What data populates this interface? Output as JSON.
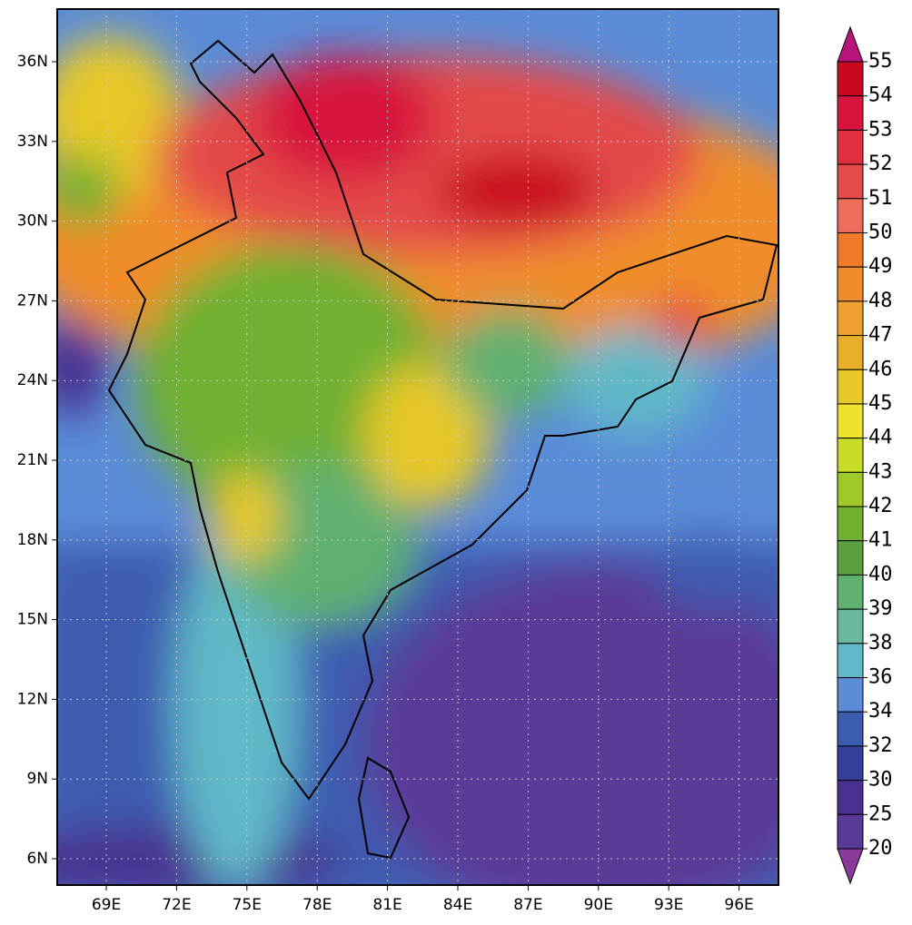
{
  "map": {
    "lat_labels": [
      "36N",
      "33N",
      "30N",
      "27N",
      "24N",
      "21N",
      "18N",
      "15N",
      "12N",
      "9N",
      "6N"
    ],
    "lon_labels": [
      "69E",
      "72E",
      "75E",
      "78E",
      "81E",
      "84E",
      "87E",
      "90E",
      "93E",
      "96E"
    ]
  },
  "colorbar": {
    "labels": [
      "55",
      "54",
      "53",
      "52",
      "51",
      "50",
      "49",
      "48",
      "47",
      "46",
      "45",
      "44",
      "43",
      "42",
      "41",
      "40",
      "39",
      "38",
      "36",
      "34",
      "32",
      "30",
      "25",
      "20"
    ],
    "colors": [
      "#b8147c",
      "#c80a1e",
      "#d8143c",
      "#e03040",
      "#e44a48",
      "#ec6e5a",
      "#f07a28",
      "#f08c2c",
      "#f0a030",
      "#e8b028",
      "#e8c828",
      "#f0e030",
      "#c8dc28",
      "#a0c828",
      "#70b030",
      "#5aa040",
      "#60b070",
      "#6ab8a0",
      "#60b8c8",
      "#5a8cd8",
      "#3c5cb0",
      "#36409c",
      "#4a3090",
      "#5a3a98",
      "#8a3a9a"
    ]
  }
}
